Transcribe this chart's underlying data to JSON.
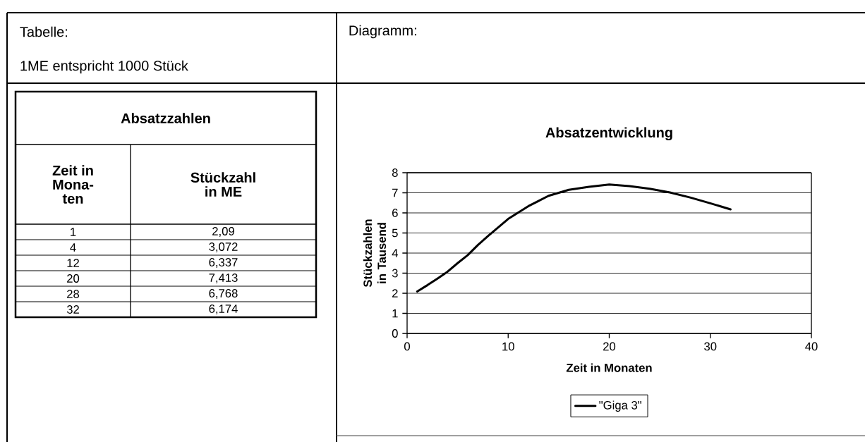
{
  "chart_data": {
    "type": "line",
    "title": "Absatzentwicklung",
    "xlabel": "Zeit in Monaten",
    "ylabel": "Stückzahlen in Tausend",
    "xlim": [
      0,
      40
    ],
    "xticks": [
      0,
      10,
      20,
      30,
      40
    ],
    "ylim": [
      0,
      8
    ],
    "yticks": [
      0,
      1,
      2,
      3,
      4,
      5,
      6,
      7,
      8
    ],
    "grid": "y",
    "legend": "bottom",
    "x": [
      1,
      2,
      3,
      4,
      5,
      6,
      7,
      8,
      10,
      12,
      14,
      16,
      18,
      20,
      22,
      24,
      26,
      28,
      30,
      32
    ],
    "series": [
      {
        "name": "\"Giga 3\"",
        "color": "#000000",
        "values": [
          2.09,
          2.4,
          2.73,
          3.072,
          3.5,
          3.9,
          4.4,
          4.85,
          5.7,
          6.337,
          6.85,
          7.15,
          7.3,
          7.413,
          7.33,
          7.2,
          7.02,
          6.768,
          6.48,
          6.174
        ]
      }
    ],
    "annotations": [
      "Tabelle:",
      "1ME entspricht 1000 Stück",
      "Diagramm:",
      "Absatzzahlen",
      "Zeit in Mona-ten",
      "Stückzahl in ME",
      "1",
      "2,09",
      "4",
      "3,072",
      "12",
      "6,337",
      "20",
      "7,413",
      "28",
      "6,768",
      "32",
      "6,174"
    ]
  }
}
